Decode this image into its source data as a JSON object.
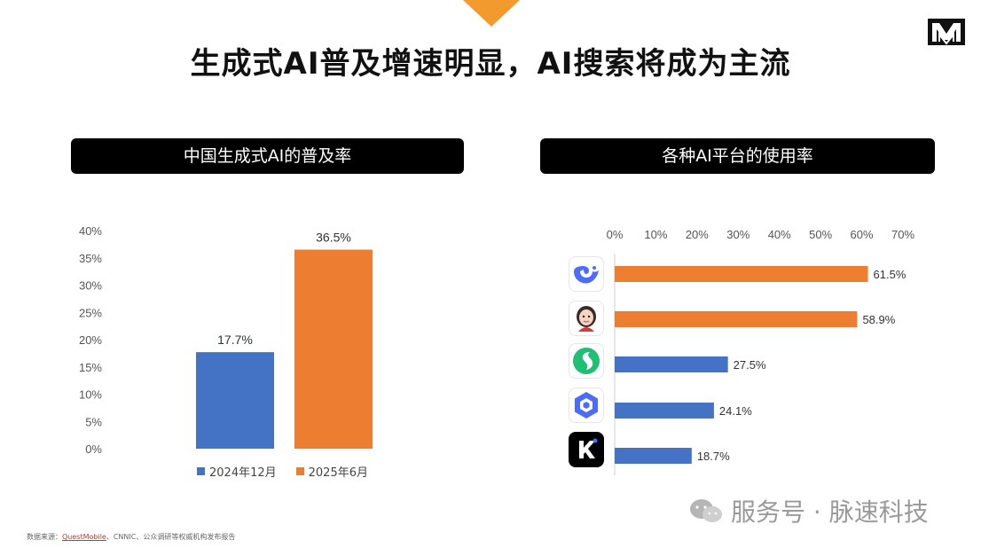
{
  "header": {
    "title": "生成式AI普及增速明显，AI搜索将成为主流"
  },
  "panels": {
    "left_title": "中国生成式AI的普及率",
    "right_title": "各种AI平台的使用率"
  },
  "chart_data": [
    {
      "type": "bar",
      "title": "",
      "categories": [
        "2024年12月",
        "2025年6月"
      ],
      "values": [
        17.7,
        36.5
      ],
      "data_labels": [
        "17.7%",
        "36.5%"
      ],
      "y_ticks": [
        "0%",
        "5%",
        "10%",
        "15%",
        "20%",
        "25%",
        "30%",
        "35%",
        "40%"
      ],
      "ylim": [
        0,
        40
      ],
      "colors": [
        "#4472c4",
        "#ed7d31"
      ],
      "legend": [
        "2024年12月",
        "2025年6月"
      ],
      "legend_position": "bottom",
      "grid": false
    },
    {
      "type": "bar",
      "orientation": "horizontal",
      "categories": [
        "deepseek-icon",
        "doubao-icon",
        "yuanbao-icon",
        "tongyi-icon",
        "kimi-icon"
      ],
      "values": [
        61.5,
        58.9,
        27.5,
        24.1,
        18.7
      ],
      "data_labels": [
        "61.5%",
        "58.9%",
        "27.5%",
        "24.1%",
        "18.7%"
      ],
      "x_ticks": [
        "0%",
        "10%",
        "20%",
        "30%",
        "40%",
        "50%",
        "60%",
        "70%"
      ],
      "xlim": [
        0,
        70
      ],
      "colors": [
        "#ed7d31",
        "#ed7d31",
        "#4472c4",
        "#4472c4",
        "#4472c4"
      ],
      "axis_position": "top",
      "grid": false
    }
  ],
  "source": {
    "prefix": "数据来源：",
    "link": "QuestMobile",
    "rest": "、CNNIC、公众调研等权威机构发布报告"
  },
  "watermark": {
    "text": "服务号 · 脉速科技"
  },
  "colors": {
    "accent_orange": "#ed7d31",
    "accent_blue": "#4472c4",
    "triangle": "#f29a2e"
  }
}
